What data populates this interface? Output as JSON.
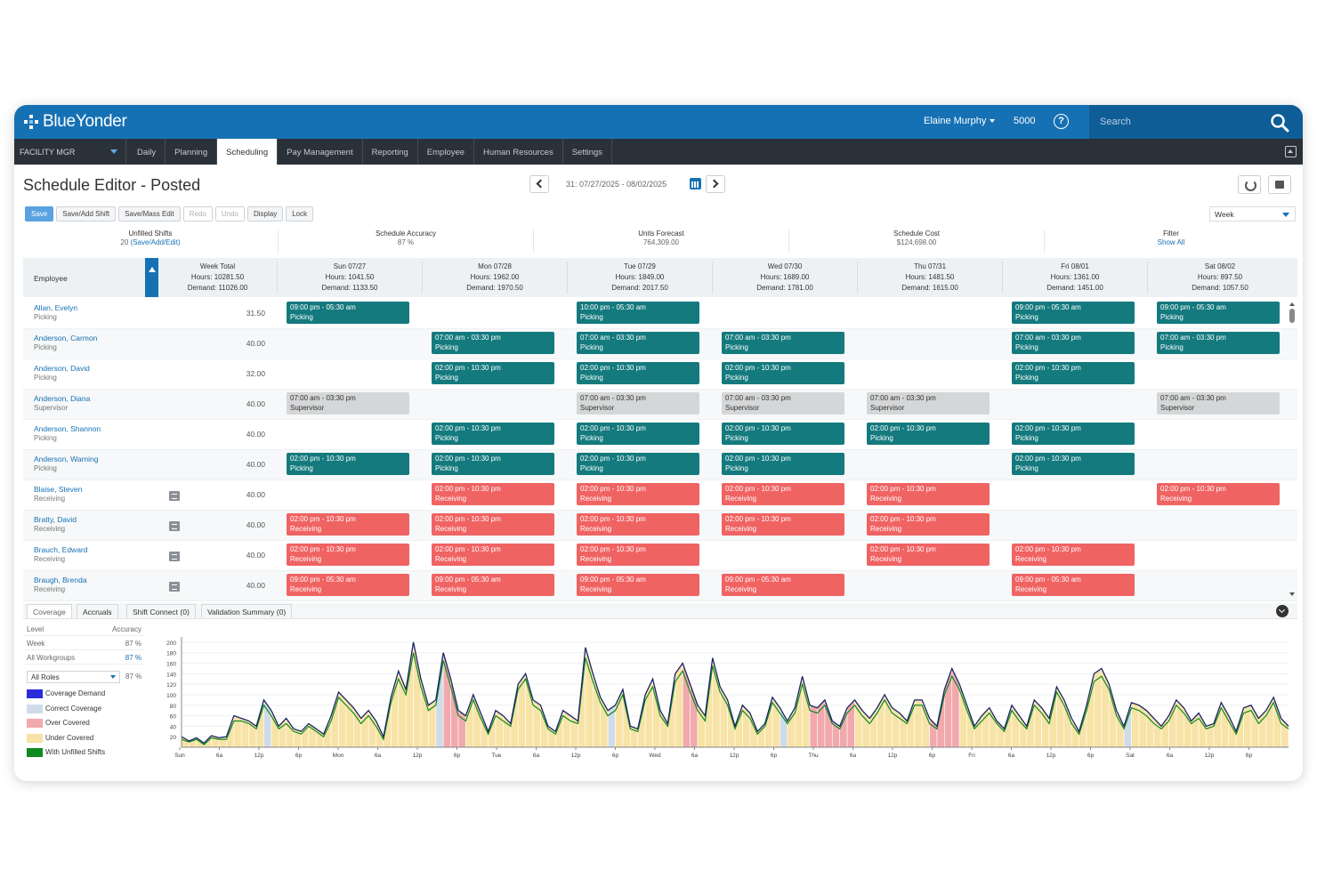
{
  "app": {
    "logo_text": "BlueYonder",
    "user_name": "Elaine Murphy",
    "store_number": "5000",
    "search_placeholder": "Search"
  },
  "nav": {
    "role": "FACILITY MGR",
    "tabs": [
      {
        "label": "Daily",
        "active": false
      },
      {
        "label": "Planning",
        "active": false
      },
      {
        "label": "Scheduling",
        "active": true
      },
      {
        "label": "Pay Management",
        "active": false
      },
      {
        "label": "Reporting",
        "active": false
      },
      {
        "label": "Employee",
        "active": false
      },
      {
        "label": "Human Resources",
        "active": false
      },
      {
        "label": "Settings",
        "active": false
      }
    ]
  },
  "page": {
    "title": "Schedule Editor - Posted",
    "date_range": "31: 07/27/2025 - 08/02/2025",
    "view": "Week"
  },
  "toolbar": {
    "buttons": [
      {
        "label": "Save",
        "state": "primary"
      },
      {
        "label": "Save/Add Shift",
        "state": "normal"
      },
      {
        "label": "Save/Mass Edit",
        "state": "normal"
      },
      {
        "label": "Redo",
        "state": "disabled"
      },
      {
        "label": "Undo",
        "state": "disabled"
      },
      {
        "label": "Display",
        "state": "normal"
      },
      {
        "label": "Lock",
        "state": "normal"
      }
    ]
  },
  "summary": {
    "unfilled_label": "Unfilled Shifts",
    "unfilled_value": "20",
    "unfilled_link": "(Save/Add/Edit)",
    "accuracy_label": "Schedule Accuracy",
    "accuracy_value": "87 %",
    "units_label": "Units Forecast",
    "units_value": "764,309.00",
    "cost_label": "Schedule Cost",
    "cost_value": "$124,698.00",
    "filter_label": "Filter",
    "filter_link": "Show All"
  },
  "grid": {
    "employee_header": "Employee",
    "columns": [
      {
        "title": "Week Total",
        "hours": "Hours: 10281.50",
        "demand": "Demand: 11026.00"
      },
      {
        "title": "Sun 07/27",
        "hours": "Hours: 1041.50",
        "demand": "Demand: 1133.50"
      },
      {
        "title": "Mon 07/28",
        "hours": "Hours: 1962.00",
        "demand": "Demand: 1970.50"
      },
      {
        "title": "Tue 07/29",
        "hours": "Hours: 1849.00",
        "demand": "Demand: 2017.50"
      },
      {
        "title": "Wed 07/30",
        "hours": "Hours: 1689.00",
        "demand": "Demand: 1781.00"
      },
      {
        "title": "Thu 07/31",
        "hours": "Hours: 1481.50",
        "demand": "Demand: 1615.00"
      },
      {
        "title": "Fri 08/01",
        "hours": "Hours: 1361.00",
        "demand": "Demand: 1451.00"
      },
      {
        "title": "Sat 08/02",
        "hours": "Hours: 897.50",
        "demand": "Demand: 1057.50"
      }
    ],
    "rows": [
      {
        "name": "Allan, Evelyn",
        "role": "Picking",
        "hours": "31.50",
        "note": false,
        "shifts": [
          {
            "day": 0,
            "time": "09:00 pm - 05:30 am",
            "job": "Picking",
            "kind": "picking"
          },
          {
            "day": 2,
            "time": "10:00 pm - 05:30 am",
            "job": "Picking",
            "kind": "picking"
          },
          {
            "day": 5,
            "time": "09:00 pm - 05:30 am",
            "job": "Picking",
            "kind": "picking"
          },
          {
            "day": 6,
            "time": "09:00 pm - 05:30 am",
            "job": "Picking",
            "kind": "picking"
          }
        ]
      },
      {
        "name": "Anderson, Carmon",
        "role": "Picking",
        "hours": "40.00",
        "note": false,
        "shifts": [
          {
            "day": 1,
            "time": "07:00 am - 03:30 pm",
            "job": "Picking",
            "kind": "picking"
          },
          {
            "day": 2,
            "time": "07:00 am - 03:30 pm",
            "job": "Picking",
            "kind": "picking"
          },
          {
            "day": 3,
            "time": "07:00 am - 03:30 pm",
            "job": "Picking",
            "kind": "picking"
          },
          {
            "day": 5,
            "time": "07:00 am - 03:30 pm",
            "job": "Picking",
            "kind": "picking"
          },
          {
            "day": 6,
            "time": "07:00 am - 03:30 pm",
            "job": "Picking",
            "kind": "picking"
          }
        ]
      },
      {
        "name": "Anderson, David",
        "role": "Picking",
        "hours": "32.00",
        "note": false,
        "shifts": [
          {
            "day": 1,
            "time": "02:00 pm - 10:30 pm",
            "job": "Picking",
            "kind": "picking"
          },
          {
            "day": 2,
            "time": "02:00 pm - 10:30 pm",
            "job": "Picking",
            "kind": "picking"
          },
          {
            "day": 3,
            "time": "02:00 pm - 10:30 pm",
            "job": "Picking",
            "kind": "picking"
          },
          {
            "day": 5,
            "time": "02:00 pm - 10:30 pm",
            "job": "Picking",
            "kind": "picking"
          }
        ]
      },
      {
        "name": "Anderson, Diana",
        "role": "Supervisor",
        "hours": "40.00",
        "note": false,
        "shifts": [
          {
            "day": 0,
            "time": "07:00 am - 03:30 pm",
            "job": "Supervisor",
            "kind": "supervisor"
          },
          {
            "day": 2,
            "time": "07:00 am - 03:30 pm",
            "job": "Supervisor",
            "kind": "supervisor"
          },
          {
            "day": 3,
            "time": "07:00 am - 03:30 pm",
            "job": "Supervisor",
            "kind": "supervisor"
          },
          {
            "day": 4,
            "time": "07:00 am - 03:30 pm",
            "job": "Supervisor",
            "kind": "supervisor"
          },
          {
            "day": 6,
            "time": "07:00 am - 03:30 pm",
            "job": "Supervisor",
            "kind": "supervisor"
          }
        ]
      },
      {
        "name": "Anderson, Shannon",
        "role": "Picking",
        "hours": "40.00",
        "note": false,
        "shifts": [
          {
            "day": 1,
            "time": "02:00 pm - 10:30 pm",
            "job": "Picking",
            "kind": "picking"
          },
          {
            "day": 2,
            "time": "02:00 pm - 10:30 pm",
            "job": "Picking",
            "kind": "picking"
          },
          {
            "day": 3,
            "time": "02:00 pm - 10:30 pm",
            "job": "Picking",
            "kind": "picking"
          },
          {
            "day": 4,
            "time": "02:00 pm - 10:30 pm",
            "job": "Picking",
            "kind": "picking"
          },
          {
            "day": 5,
            "time": "02:00 pm - 10:30 pm",
            "job": "Picking",
            "kind": "picking"
          }
        ]
      },
      {
        "name": "Anderson, Warning",
        "role": "Picking",
        "hours": "40.00",
        "note": false,
        "shifts": [
          {
            "day": 0,
            "time": "02:00 pm - 10:30 pm",
            "job": "Picking",
            "kind": "picking"
          },
          {
            "day": 1,
            "time": "02:00 pm - 10:30 pm",
            "job": "Picking",
            "kind": "picking"
          },
          {
            "day": 2,
            "time": "02:00 pm - 10:30 pm",
            "job": "Picking",
            "kind": "picking"
          },
          {
            "day": 3,
            "time": "02:00 pm - 10:30 pm",
            "job": "Picking",
            "kind": "picking"
          },
          {
            "day": 5,
            "time": "02:00 pm - 10:30 pm",
            "job": "Picking",
            "kind": "picking"
          }
        ]
      },
      {
        "name": "Blaise, Steven",
        "role": "Receiving",
        "hours": "40.00",
        "note": true,
        "shifts": [
          {
            "day": 1,
            "time": "02:00 pm - 10:30 pm",
            "job": "Receiving",
            "kind": "receiving"
          },
          {
            "day": 2,
            "time": "02:00 pm - 10:30 pm",
            "job": "Receiving",
            "kind": "receiving"
          },
          {
            "day": 3,
            "time": "02:00 pm - 10:30 pm",
            "job": "Receiving",
            "kind": "receiving"
          },
          {
            "day": 4,
            "time": "02:00 pm - 10:30 pm",
            "job": "Receiving",
            "kind": "receiving"
          },
          {
            "day": 6,
            "time": "02:00 pm - 10:30 pm",
            "job": "Receiving",
            "kind": "receiving"
          }
        ]
      },
      {
        "name": "Bratty, David",
        "role": "Receiving",
        "hours": "40.00",
        "note": true,
        "shifts": [
          {
            "day": 0,
            "time": "02:00 pm - 10:30 pm",
            "job": "Receiving",
            "kind": "receiving"
          },
          {
            "day": 1,
            "time": "02:00 pm - 10:30 pm",
            "job": "Receiving",
            "kind": "receiving"
          },
          {
            "day": 2,
            "time": "02:00 pm - 10:30 pm",
            "job": "Receiving",
            "kind": "receiving"
          },
          {
            "day": 3,
            "time": "02:00 pm - 10:30 pm",
            "job": "Receiving",
            "kind": "receiving"
          },
          {
            "day": 4,
            "time": "02:00 pm - 10:30 pm",
            "job": "Receiving",
            "kind": "receiving"
          }
        ]
      },
      {
        "name": "Brauch, Edward",
        "role": "Receiving",
        "hours": "40.00",
        "note": true,
        "shifts": [
          {
            "day": 0,
            "time": "02:00 pm - 10:30 pm",
            "job": "Receiving",
            "kind": "receiving"
          },
          {
            "day": 1,
            "time": "02:00 pm - 10:30 pm",
            "job": "Receiving",
            "kind": "receiving"
          },
          {
            "day": 2,
            "time": "02:00 pm - 10:30 pm",
            "job": "Receiving",
            "kind": "receiving"
          },
          {
            "day": 4,
            "time": "02:00 pm - 10:30 pm",
            "job": "Receiving",
            "kind": "receiving"
          },
          {
            "day": 5,
            "time": "02:00 pm - 10:30 pm",
            "job": "Receiving",
            "kind": "receiving"
          }
        ]
      },
      {
        "name": "Braugh, Brenda",
        "role": "Receiving",
        "hours": "40.00",
        "note": true,
        "shifts": [
          {
            "day": 0,
            "time": "09:00 pm - 05:30 am",
            "job": "Receiving",
            "kind": "receiving"
          },
          {
            "day": 1,
            "time": "09:00 pm - 05:30 am",
            "job": "Receiving",
            "kind": "receiving"
          },
          {
            "day": 2,
            "time": "09:00 pm - 05:30 am",
            "job": "Receiving",
            "kind": "receiving"
          },
          {
            "day": 3,
            "time": "09:00 pm - 05:30 am",
            "job": "Receiving",
            "kind": "receiving"
          },
          {
            "day": 5,
            "time": "09:00 pm - 05:30 am",
            "job": "Receiving",
            "kind": "receiving"
          }
        ]
      }
    ]
  },
  "bottom_tabs": [
    {
      "label": "Coverage",
      "active": true
    },
    {
      "label": "Accruals",
      "active": false
    },
    {
      "label": "Shift Connect (0)",
      "active": false
    },
    {
      "label": "Validation Summary (0)",
      "active": false
    }
  ],
  "coverage": {
    "level_label": "Level",
    "accuracy_label": "Accuracy",
    "week_label": "Week",
    "week_value": "87 %",
    "workgroups_label": "All Workgroups",
    "workgroups_value": "87 %",
    "roles_label": "All Roles",
    "roles_value": "87 %",
    "legend": [
      {
        "label": "Coverage Demand",
        "color": "#2b2bd9"
      },
      {
        "label": "Correct Coverage",
        "color": "#cfdbe8"
      },
      {
        "label": "Over Covered",
        "color": "#f2a9ad"
      },
      {
        "label": "Under Covered",
        "color": "#f7e3a6"
      },
      {
        "label": "With Unfilled Shifts",
        "color": "#0e8a1e"
      }
    ]
  },
  "chart_data": {
    "type": "area",
    "y_ticks": [
      20,
      40,
      60,
      80,
      100,
      120,
      140,
      160,
      180,
      200
    ],
    "ylim": [
      0,
      210
    ],
    "x_tick_labels": [
      "Sun",
      "6a",
      "12p",
      "6p",
      "Mon",
      "6a",
      "12p",
      "6p",
      "Tue",
      "6a",
      "12p",
      "6p",
      "Wed",
      "6a",
      "12p",
      "6p",
      "Thu",
      "6a",
      "12p",
      "6p",
      "Fri",
      "6a",
      "12p",
      "6p",
      "Sat",
      "6a",
      "12p",
      "6p"
    ],
    "demand": [
      20,
      12,
      18,
      8,
      22,
      18,
      20,
      60,
      55,
      50,
      40,
      90,
      70,
      40,
      55,
      35,
      30,
      45,
      35,
      25,
      60,
      105,
      90,
      75,
      55,
      70,
      50,
      20,
      95,
      145,
      110,
      200,
      130,
      80,
      90,
      180,
      130,
      70,
      60,
      100,
      65,
      30,
      70,
      60,
      45,
      120,
      140,
      90,
      80,
      40,
      30,
      70,
      60,
      50,
      190,
      140,
      95,
      70,
      80,
      110,
      40,
      35,
      100,
      130,
      70,
      45,
      140,
      160,
      120,
      80,
      60,
      170,
      115,
      90,
      40,
      80,
      65,
      30,
      45,
      95,
      75,
      50,
      75,
      135,
      80,
      75,
      90,
      50,
      40,
      75,
      90,
      70,
      55,
      75,
      100,
      75,
      65,
      50,
      90,
      90,
      55,
      40,
      110,
      150,
      120,
      80,
      40,
      60,
      75,
      50,
      35,
      80,
      60,
      40,
      90,
      75,
      55,
      115,
      90,
      55,
      30,
      80,
      140,
      150,
      120,
      70,
      40,
      85,
      80,
      70,
      55,
      40,
      60,
      90,
      75,
      50,
      65,
      40,
      45,
      85,
      60,
      30,
      75,
      80,
      55,
      70,
      95,
      55,
      40
    ],
    "coverage": [
      15,
      10,
      15,
      5,
      18,
      15,
      15,
      50,
      50,
      45,
      35,
      80,
      60,
      35,
      45,
      30,
      25,
      40,
      30,
      20,
      50,
      95,
      80,
      65,
      45,
      60,
      40,
      15,
      85,
      130,
      100,
      180,
      115,
      70,
      80,
      165,
      115,
      60,
      50,
      90,
      55,
      25,
      60,
      50,
      40,
      110,
      130,
      80,
      70,
      35,
      25,
      60,
      50,
      45,
      170,
      125,
      85,
      60,
      70,
      100,
      35,
      30,
      90,
      115,
      60,
      40,
      125,
      145,
      105,
      70,
      50,
      155,
      105,
      80,
      35,
      70,
      55,
      25,
      40,
      85,
      65,
      45,
      65,
      120,
      70,
      65,
      80,
      45,
      35,
      65,
      80,
      60,
      45,
      65,
      90,
      65,
      55,
      45,
      80,
      80,
      45,
      35,
      100,
      135,
      110,
      70,
      35,
      50,
      65,
      45,
      30,
      70,
      50,
      35,
      80,
      65,
      45,
      105,
      80,
      45,
      25,
      70,
      125,
      135,
      110,
      60,
      35,
      75,
      70,
      60,
      45,
      35,
      50,
      80,
      65,
      45,
      55,
      35,
      40,
      75,
      50,
      25,
      65,
      70,
      45,
      60,
      85,
      45,
      35
    ],
    "over_covered_bins": [
      35,
      36,
      37,
      67,
      68,
      84,
      85,
      86,
      87,
      88,
      89,
      100,
      101,
      102,
      103
    ]
  }
}
